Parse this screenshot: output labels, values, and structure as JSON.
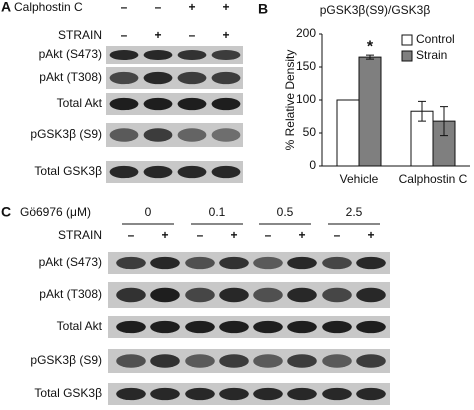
{
  "panel_a": {
    "label": "A",
    "treatments": [
      {
        "label": "Calphostin C",
        "signs": [
          "–",
          "–",
          "+",
          "+"
        ]
      },
      {
        "label": "STRAIN",
        "signs": [
          "–",
          "+",
          "–",
          "+"
        ]
      }
    ],
    "blots": [
      "pAkt (S473)",
      "pAkt (T308)",
      "Total Akt",
      "pGSK3β (S9)",
      "Total GSK3β"
    ]
  },
  "chart_data": {
    "type": "bar",
    "panel_label": "B",
    "title": "pGSK3β(S9)/GSK3β",
    "y_label": "% Relative Density",
    "categories": [
      "Vehicle",
      "Calphostin C"
    ],
    "series": [
      {
        "name": "Control",
        "color": "#ffffff",
        "values": [
          100,
          83
        ],
        "errors": [
          null,
          15
        ]
      },
      {
        "name": "Strain",
        "color": "#7f7f7f",
        "values": [
          165,
          68
        ],
        "errors": [
          3,
          22
        ]
      }
    ],
    "annotation": "*",
    "ylim": [
      0,
      200
    ],
    "yticks": [
      0,
      50,
      100,
      150,
      200
    ],
    "legend": "top-right"
  },
  "panel_c": {
    "label": "C",
    "dose_label": "Gö6976 (μM)",
    "doses": [
      "0",
      "0.1",
      "0.5",
      "2.5"
    ],
    "strain_label": "STRAIN",
    "strain_signs": [
      "–",
      "+",
      "–",
      "+",
      "–",
      "+",
      "–",
      "+"
    ],
    "blots": [
      "pAkt (S473)",
      "pAkt (T308)",
      "Total Akt",
      "pGSK3β (S9)",
      "Total GSK3β"
    ]
  }
}
